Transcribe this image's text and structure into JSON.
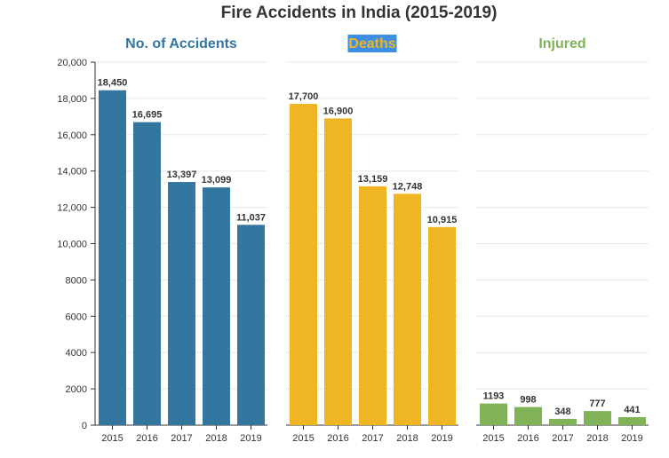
{
  "chart_data": {
    "type": "bar",
    "title": "Fire Accidents in India (2015-2019)",
    "categories": [
      "2015",
      "2016",
      "2017",
      "2018",
      "2019"
    ],
    "ylim": [
      0,
      20000
    ],
    "y_ticks": [
      "0",
      "2000",
      "4000",
      "6000",
      "8000",
      "10,000",
      "12,000",
      "14,000",
      "16,000",
      "18,000",
      "20,000"
    ],
    "grid": true,
    "series": [
      {
        "name": "No. of Accidents",
        "color": "#33769f",
        "values": [
          18450,
          16695,
          13397,
          13099,
          11037
        ],
        "labels": [
          "18,450",
          "16,695",
          "13,397",
          "13,099",
          "11,037"
        ]
      },
      {
        "name": "Deaths",
        "color": "#efb523",
        "values": [
          17700,
          16900,
          13159,
          12748,
          10915
        ],
        "labels": [
          "17,700",
          "16,900",
          "13,159",
          "12,748",
          "10,915"
        ]
      },
      {
        "name": "Injured",
        "color": "#80b257",
        "values": [
          1193,
          998,
          348,
          777,
          441
        ],
        "labels": [
          "1193",
          "998",
          "348",
          "777",
          "441"
        ]
      }
    ]
  }
}
